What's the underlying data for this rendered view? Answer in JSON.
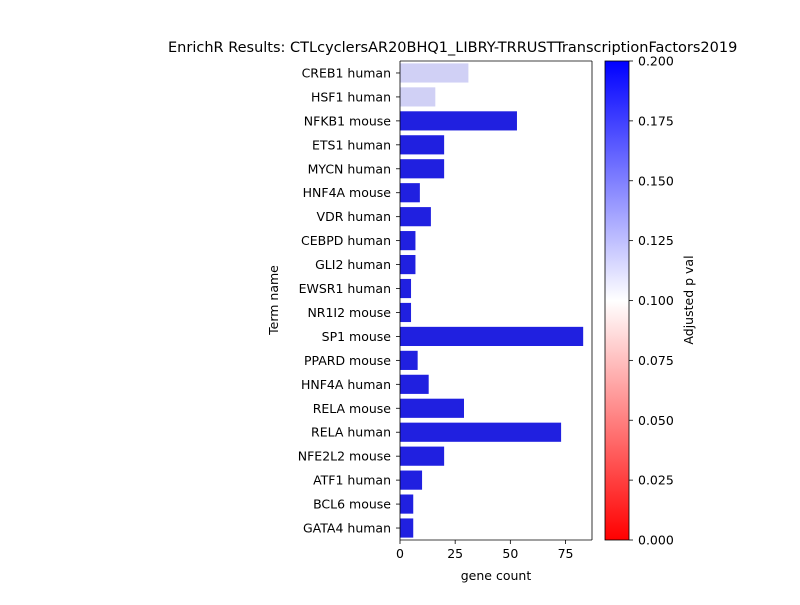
{
  "chart_data": {
    "type": "bar",
    "orientation": "horizontal",
    "title": "EnrichR Results: CTLcyclersAR20BHQ1_LIBRY-TRRUSTTranscriptionFactors2019",
    "xlabel": "gene count",
    "ylabel": "Term name",
    "xlim": [
      0,
      87
    ],
    "xticks": [
      "0",
      "25",
      "50",
      "75"
    ],
    "xtick_values": [
      0,
      25,
      50,
      75
    ],
    "categories": [
      "CREB1 human",
      "HSF1 human",
      "NFKB1 mouse",
      "ETS1 human",
      "MYCN human",
      "HNF4A mouse",
      "VDR human",
      "CEBPD human",
      "GLI2 human",
      "EWSR1 human",
      "NR1I2 mouse",
      "SP1 mouse",
      "PPARD mouse",
      "HNF4A human",
      "RELA mouse",
      "RELA human",
      "NFE2L2 mouse",
      "ATF1 human",
      "BCL6 mouse",
      "GATA4 human"
    ],
    "values": [
      31,
      16,
      53,
      20,
      20,
      9,
      14,
      7,
      7,
      5,
      5,
      83,
      8,
      13,
      29,
      73,
      20,
      10,
      6,
      6
    ],
    "bar_colors": [
      "#d0d0f5",
      "#d0d0f5",
      "#2020e0",
      "#2020e0",
      "#2020e0",
      "#2020e0",
      "#2020e0",
      "#2020e0",
      "#2020e0",
      "#2020e0",
      "#2020e0",
      "#2020e0",
      "#2020e0",
      "#2020e0",
      "#2020e0",
      "#2020e0",
      "#2020e0",
      "#2020e0",
      "#2020e0",
      "#2020e0"
    ],
    "colorbar": {
      "label": "Adjusted p val",
      "range": [
        0,
        0.2
      ],
      "ticks": [
        "0.000",
        "0.025",
        "0.050",
        "0.075",
        "0.100",
        "0.125",
        "0.150",
        "0.175",
        "0.200"
      ],
      "tick_values": [
        0,
        0.025,
        0.05,
        0.075,
        0.1,
        0.125,
        0.15,
        0.175,
        0.2
      ],
      "colors": [
        "#ff0000",
        "#ffffff",
        "#0000ff"
      ]
    },
    "grid": false,
    "legend": "none"
  }
}
